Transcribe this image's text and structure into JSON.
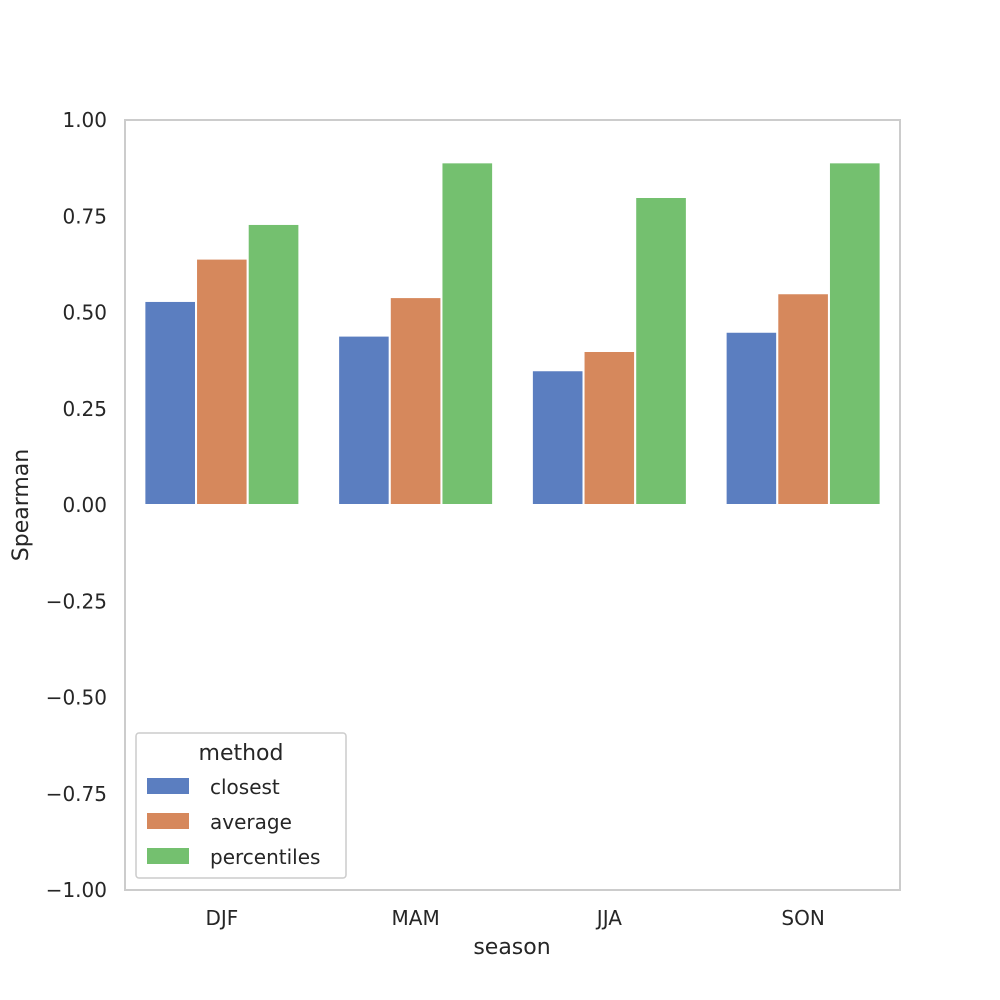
{
  "chart_data": {
    "type": "bar",
    "categories": [
      "DJF",
      "MAM",
      "JJA",
      "SON"
    ],
    "series": [
      {
        "name": "closest",
        "values": [
          0.53,
          0.44,
          0.35,
          0.45
        ],
        "color": "#5b7ec0"
      },
      {
        "name": "average",
        "values": [
          0.64,
          0.54,
          0.4,
          0.55
        ],
        "color": "#d6885c"
      },
      {
        "name": "percentiles",
        "values": [
          0.73,
          0.89,
          0.8,
          0.89
        ],
        "color": "#74c06f"
      }
    ],
    "xlabel": "season",
    "ylabel": "Spearman",
    "ylim": [
      -1.0,
      1.0
    ],
    "yticks": [
      1.0,
      0.75,
      0.5,
      0.25,
      0.0,
      -0.25,
      -0.5,
      -0.75,
      -1.0
    ],
    "ytick_labels": [
      "1.00",
      "0.75",
      "0.50",
      "0.25",
      "0.00",
      "−0.25",
      "−0.50",
      "−0.75",
      "−1.00"
    ],
    "grid": false,
    "legend": {
      "title": "method",
      "placement": "lower-left"
    }
  }
}
